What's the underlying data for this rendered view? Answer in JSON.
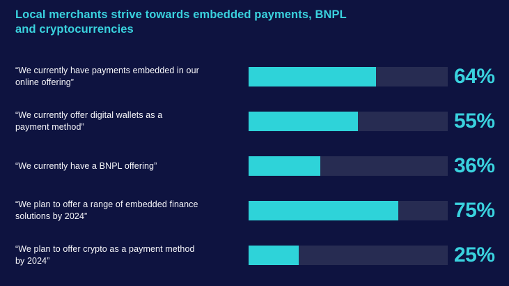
{
  "page": {
    "background": "#0e1340"
  },
  "title": {
    "lines": [
      "Local merchants strive towards embedded payments, BNPL",
      "and cryptocurrencies"
    ],
    "color": "#3ad2de"
  },
  "colors": {
    "background": "#0e1340",
    "bar_fill": "#2ed3d9",
    "bar_track": "#272c52",
    "label_text": "#ffffff",
    "value_text": "#3ad2de"
  },
  "rows": [
    {
      "lines": [
        "“We currently have payments embedded in our",
        "online offering”"
      ],
      "value": 64,
      "value_label": "64%"
    },
    {
      "lines": [
        "“We currently offer digital wallets as a",
        "payment method”"
      ],
      "value": 55,
      "value_label": "55%"
    },
    {
      "lines": [
        "“We currently have a BNPL offering”"
      ],
      "value": 36,
      "value_label": "36%"
    },
    {
      "lines": [
        "“We plan to offer a range of embedded finance",
        "solutions by 2024”"
      ],
      "value": 75,
      "value_label": "75%"
    },
    {
      "lines": [
        "“We plan to offer crypto as a payment method",
        "by 2024”"
      ],
      "value": 25,
      "value_label": "25%"
    }
  ],
  "chart_data": {
    "type": "bar",
    "orientation": "horizontal",
    "title": "Local merchants strive towards embedded payments, BNPL and cryptocurrencies",
    "categories": [
      "“We currently have payments embedded in our online offering”",
      "“We currently offer digital wallets as a payment method”",
      "“We currently have a BNPL offering”",
      "“We plan to offer a range of embedded finance solutions by 2024”",
      "“We plan to offer crypto as a payment method by 2024”"
    ],
    "values": [
      64,
      55,
      36,
      75,
      25
    ],
    "value_labels": [
      "64%",
      "55%",
      "36%",
      "75%",
      "25%"
    ],
    "unit": "%",
    "xlim": [
      0,
      100
    ],
    "grid": false,
    "legend": false
  }
}
